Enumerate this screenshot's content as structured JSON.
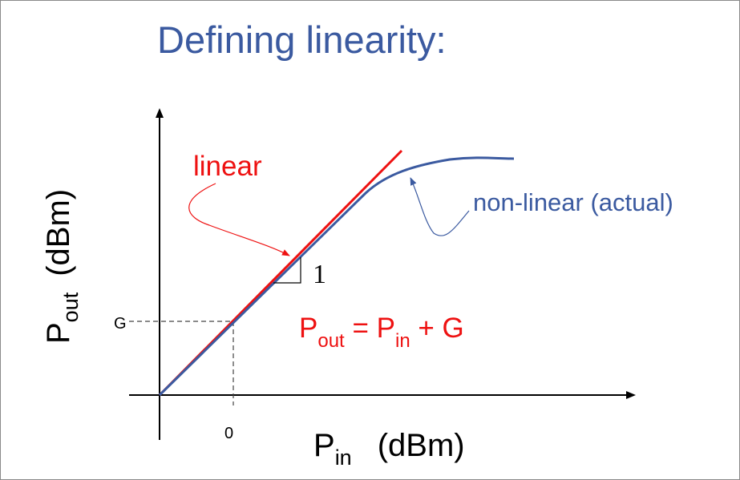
{
  "slide": {
    "title": "Defining linearity:"
  },
  "axes": {
    "y_label": {
      "main": "P",
      "subscript": "out",
      "unit": "(dBm)"
    },
    "x_label": {
      "main": "P",
      "subscript": "in",
      "unit": "(dBm)"
    },
    "y_tick": "G",
    "x_tick": "0"
  },
  "curves": {
    "linear": {
      "label": "linear",
      "color": "#ee1111"
    },
    "nonlinear": {
      "label": "non-linear (actual)",
      "color": "#3b5aa0"
    }
  },
  "slope_label": "1",
  "equation": {
    "lhs_main": "P",
    "lhs_sub": "out",
    "middle": " = ",
    "rhs_main": "P",
    "rhs_sub": "in",
    "tail": " + G",
    "color": "#ee1111"
  },
  "colors": {
    "axis": "#000000",
    "dashed_guides": "#444444"
  }
}
